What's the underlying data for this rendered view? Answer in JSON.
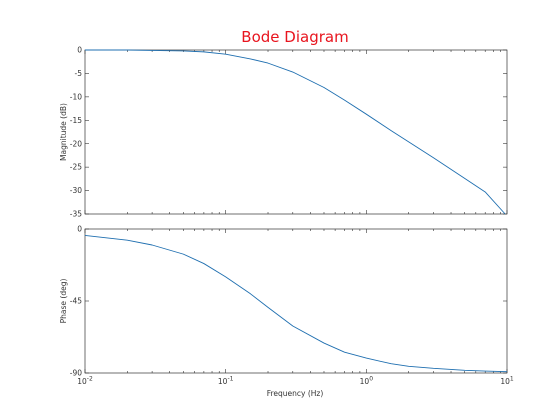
{
  "chart_data": {
    "type": "line",
    "title": "Bode Diagram",
    "colors": {
      "title": "#e8141e",
      "line": "#1f6fb0",
      "axes": "#333333",
      "background": "#ffffff"
    },
    "x_scale": "log",
    "xlim": [
      0.01,
      10
    ],
    "xlabel": "Frequency  (Hz)",
    "x_ticks": [
      {
        "value": 0.01,
        "base": "10",
        "exp": "-2"
      },
      {
        "value": 0.1,
        "base": "10",
        "exp": "-1"
      },
      {
        "value": 1,
        "base": "10",
        "exp": "0"
      },
      {
        "value": 10,
        "base": "10",
        "exp": "1"
      }
    ],
    "grid": false,
    "panels": [
      {
        "name": "magnitude",
        "ylabel": "Magnitude  (dB)",
        "ylim": [
          -35,
          0
        ],
        "y_ticks": [
          {
            "value": 0,
            "label": "0"
          },
          {
            "value": -5,
            "label": "-5"
          },
          {
            "value": -10,
            "label": "-10"
          },
          {
            "value": -15,
            "label": "-15"
          },
          {
            "value": -20,
            "label": "-20"
          },
          {
            "value": -25,
            "label": "-25"
          },
          {
            "value": -30,
            "label": "-30"
          },
          {
            "value": -35,
            "label": "-35"
          }
        ],
        "x": [
          0.01,
          0.02,
          0.03,
          0.05,
          0.07,
          0.1,
          0.15,
          0.2,
          0.3,
          0.5,
          0.7,
          1,
          1.5,
          2,
          3,
          5,
          7,
          9.7
        ],
        "y": [
          0,
          0,
          -0.1,
          -0.2,
          -0.4,
          -0.9,
          -1.9,
          -2.8,
          -4.7,
          -8.0,
          -10.7,
          -13.7,
          -17.2,
          -19.6,
          -23.0,
          -27.4,
          -30.3,
          -35.0
        ]
      },
      {
        "name": "phase",
        "ylabel": "Phase  (deg)",
        "ylim": [
          -90,
          0
        ],
        "y_ticks": [
          {
            "value": 0,
            "label": "0"
          },
          {
            "value": -45,
            "label": "-45"
          },
          {
            "value": -90,
            "label": "-90"
          }
        ],
        "x": [
          0.01,
          0.02,
          0.03,
          0.05,
          0.07,
          0.1,
          0.15,
          0.2,
          0.3,
          0.5,
          0.7,
          1,
          1.5,
          2,
          3,
          5,
          7,
          10
        ],
        "y": [
          -4.0,
          -7.0,
          -10.0,
          -15.7,
          -21.6,
          -29.9,
          -40.5,
          -49.0,
          -60.6,
          -71.3,
          -77.0,
          -80.7,
          -84.2,
          -85.8,
          -87.1,
          -88.3,
          -88.8,
          -89.2
        ]
      }
    ]
  }
}
